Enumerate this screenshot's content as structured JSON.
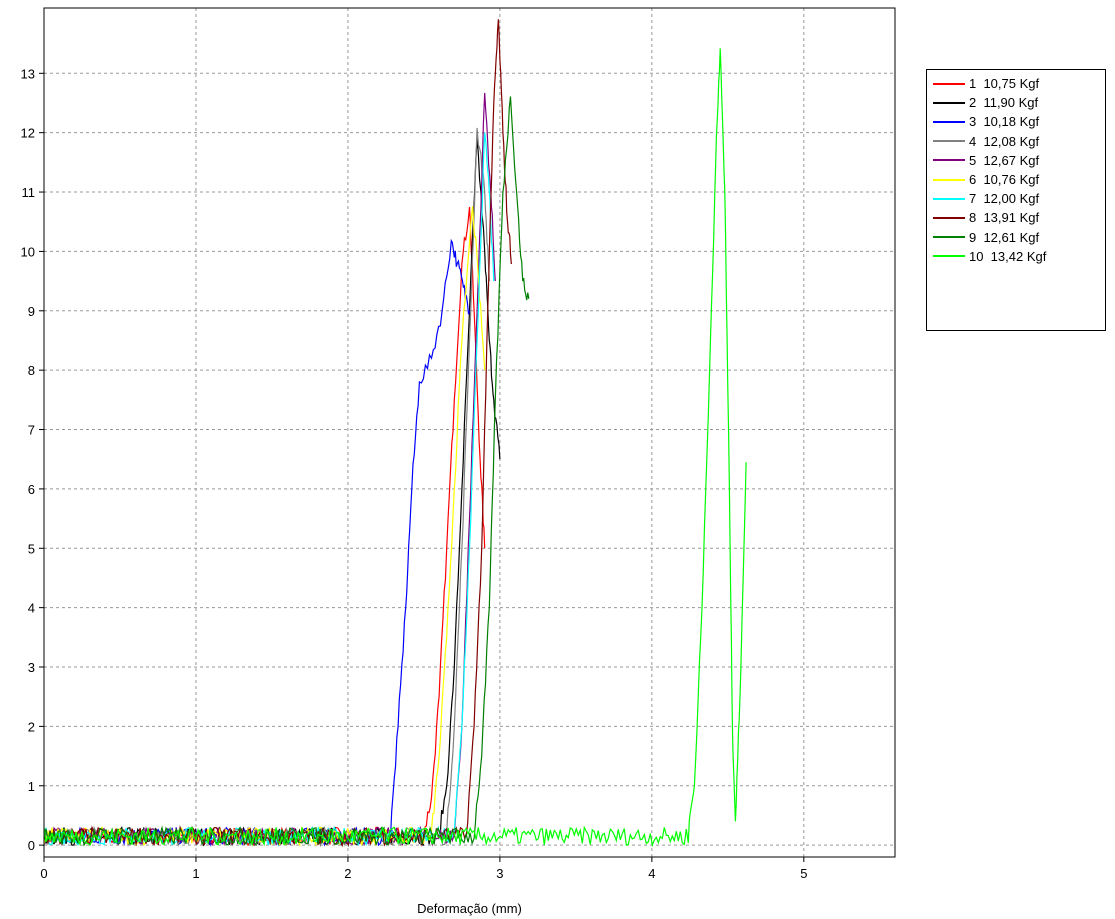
{
  "chart_data": {
    "type": "line",
    "title": "",
    "xlabel": "Deformação (mm)",
    "ylabel": "",
    "xlim": [
      0,
      5.6
    ],
    "ylim": [
      -0.2,
      14.1
    ],
    "xticks": [
      "0",
      "1",
      "2",
      "3",
      "4",
      "5"
    ],
    "yticks": [
      "0",
      "1",
      "2",
      "3",
      "4",
      "5",
      "6",
      "7",
      "8",
      "9",
      "10",
      "11",
      "12",
      "13"
    ],
    "grid": true,
    "legend_position": "top-right",
    "series": [
      {
        "name": "1  10,75 Kgf",
        "color": "#ff0000",
        "points": [
          [
            0,
            0.15
          ],
          [
            2.5,
            0.2
          ],
          [
            2.55,
            0.8
          ],
          [
            2.6,
            2.5
          ],
          [
            2.65,
            5
          ],
          [
            2.7,
            7.5
          ],
          [
            2.75,
            9.8
          ],
          [
            2.8,
            10.75
          ],
          [
            2.83,
            9
          ],
          [
            2.87,
            6.5
          ],
          [
            2.9,
            5
          ]
        ]
      },
      {
        "name": "2  11,90 Kgf",
        "color": "#000000",
        "points": [
          [
            0,
            0.15
          ],
          [
            2.6,
            0.2
          ],
          [
            2.65,
            1
          ],
          [
            2.7,
            3
          ],
          [
            2.75,
            6
          ],
          [
            2.8,
            9
          ],
          [
            2.85,
            11.9
          ],
          [
            2.9,
            10
          ],
          [
            2.93,
            8.5
          ],
          [
            2.96,
            7.5
          ],
          [
            3.0,
            6.5
          ]
        ]
      },
      {
        "name": "3  10,18 Kgf",
        "color": "#0000ff",
        "points": [
          [
            0,
            0.15
          ],
          [
            2.28,
            0.2
          ],
          [
            2.33,
            2
          ],
          [
            2.38,
            4
          ],
          [
            2.42,
            6
          ],
          [
            2.47,
            7.8
          ],
          [
            2.55,
            8.2
          ],
          [
            2.62,
            9
          ],
          [
            2.68,
            10.18
          ],
          [
            2.72,
            9.8
          ],
          [
            2.76,
            9.4
          ],
          [
            2.8,
            9
          ]
        ]
      },
      {
        "name": "4  12,08 Kgf",
        "color": "#808080",
        "points": [
          [
            0,
            0.15
          ],
          [
            2.65,
            0.2
          ],
          [
            2.7,
            2
          ],
          [
            2.75,
            5
          ],
          [
            2.8,
            8.5
          ],
          [
            2.85,
            12.08
          ],
          [
            2.9,
            11
          ],
          [
            2.93,
            9.5
          ]
        ]
      },
      {
        "name": "5  12,67 Kgf",
        "color": "#800080",
        "points": [
          [
            0,
            0.15
          ],
          [
            2.7,
            0.2
          ],
          [
            2.75,
            2
          ],
          [
            2.8,
            5.5
          ],
          [
            2.85,
            9
          ],
          [
            2.9,
            12.67
          ],
          [
            2.94,
            11
          ],
          [
            2.97,
            9.5
          ]
        ]
      },
      {
        "name": "6  10,76 Kgf",
        "color": "#ffff00",
        "points": [
          [
            0,
            0.15
          ],
          [
            2.55,
            0.2
          ],
          [
            2.6,
            1.5
          ],
          [
            2.65,
            3.5
          ],
          [
            2.7,
            6
          ],
          [
            2.75,
            8.5
          ],
          [
            2.82,
            10.76
          ],
          [
            2.86,
            9.5
          ],
          [
            2.9,
            8
          ]
        ]
      },
      {
        "name": "7  12,00 Kgf",
        "color": "#00ffff",
        "points": [
          [
            0,
            0.15
          ],
          [
            2.7,
            0.2
          ],
          [
            2.75,
            2
          ],
          [
            2.8,
            5
          ],
          [
            2.85,
            8.5
          ],
          [
            2.9,
            12.0
          ],
          [
            2.93,
            11
          ],
          [
            2.96,
            9.5
          ]
        ]
      },
      {
        "name": "8  13,91 Kgf",
        "color": "#800000",
        "points": [
          [
            0,
            0.15
          ],
          [
            2.78,
            0.2
          ],
          [
            2.83,
            2
          ],
          [
            2.88,
            5
          ],
          [
            2.92,
            9
          ],
          [
            2.96,
            12.5
          ],
          [
            2.99,
            13.91
          ],
          [
            3.02,
            12
          ],
          [
            3.05,
            10.5
          ],
          [
            3.08,
            9.8
          ]
        ]
      },
      {
        "name": "9  12,61 Kgf",
        "color": "#008000",
        "points": [
          [
            0,
            0.15
          ],
          [
            2.83,
            0.2
          ],
          [
            2.88,
            1.5
          ],
          [
            2.93,
            4
          ],
          [
            2.97,
            7.5
          ],
          [
            3.02,
            11
          ],
          [
            3.07,
            12.61
          ],
          [
            3.11,
            11
          ],
          [
            3.15,
            9.5
          ],
          [
            3.19,
            9.2
          ]
        ]
      },
      {
        "name": "10  13,42 Kgf",
        "color": "#00ff00",
        "points": [
          [
            0,
            0.15
          ],
          [
            4.24,
            0.3
          ],
          [
            4.28,
            1
          ],
          [
            4.33,
            4
          ],
          [
            4.38,
            8
          ],
          [
            4.42,
            11.5
          ],
          [
            4.45,
            13.42
          ],
          [
            4.48,
            11
          ],
          [
            4.51,
            6
          ],
          [
            4.53,
            2
          ],
          [
            4.55,
            0.4
          ],
          [
            4.58,
            2.5
          ],
          [
            4.62,
            6.45
          ]
        ]
      }
    ]
  }
}
